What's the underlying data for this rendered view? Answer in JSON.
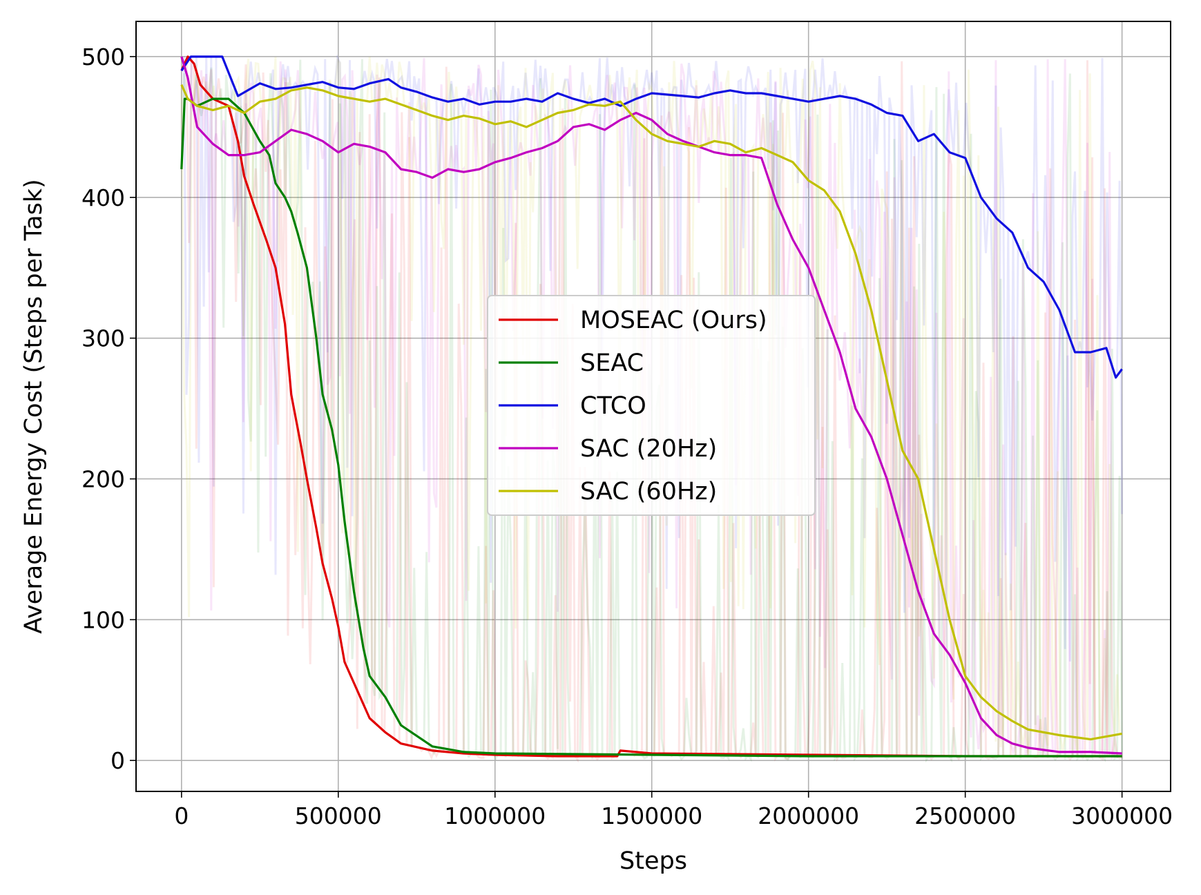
{
  "chart_data": {
    "type": "line",
    "title": "",
    "xlabel": "Steps",
    "ylabel": "Average Energy Cost (Steps per Task)",
    "xlim": [
      -145000,
      3155000
    ],
    "ylim": [
      -22,
      525
    ],
    "x_ticks": [
      0,
      500000,
      1000000,
      1500000,
      2000000,
      2500000,
      3000000
    ],
    "x_tick_labels": [
      "0",
      "500000",
      "1000000",
      "1500000",
      "2000000",
      "2500000",
      "3000000"
    ],
    "y_ticks": [
      0,
      100,
      200,
      300,
      400,
      500
    ],
    "y_tick_labels": [
      "0",
      "100",
      "200",
      "300",
      "400",
      "500"
    ],
    "grid": true,
    "legend_position": "center",
    "series": [
      {
        "name": "MOSEAC (Ours)",
        "color": "#e00000",
        "x": [
          0,
          20000,
          40000,
          60000,
          100000,
          150000,
          180000,
          200000,
          230000,
          270000,
          300000,
          330000,
          350000,
          380000,
          400000,
          430000,
          450000,
          480000,
          500000,
          520000,
          550000,
          580000,
          600000,
          650000,
          700000,
          800000,
          900000,
          1000000,
          1200000,
          1390000,
          1400000,
          1500000,
          2000000,
          2500000,
          3000000
        ],
        "y": [
          490,
          500,
          495,
          480,
          470,
          465,
          440,
          415,
          395,
          370,
          350,
          310,
          260,
          225,
          200,
          165,
          140,
          115,
          95,
          70,
          55,
          40,
          30,
          20,
          12,
          7,
          5,
          4,
          3,
          3,
          7,
          5,
          4,
          3,
          3
        ]
      },
      {
        "name": "SEAC",
        "color": "#008000",
        "x": [
          0,
          10000,
          20000,
          50000,
          100000,
          150000,
          200000,
          250000,
          280000,
          300000,
          330000,
          350000,
          370000,
          400000,
          430000,
          450000,
          480000,
          500000,
          520000,
          550000,
          580000,
          600000,
          650000,
          700000,
          800000,
          900000,
          1000000,
          1500000,
          2000000,
          2500000,
          3000000
        ],
        "y": [
          420,
          470,
          470,
          465,
          470,
          470,
          460,
          440,
          430,
          410,
          400,
          390,
          375,
          350,
          300,
          260,
          235,
          210,
          170,
          120,
          80,
          60,
          45,
          25,
          10,
          6,
          5,
          4,
          3,
          3,
          3
        ]
      },
      {
        "name": "CTCO",
        "color": "#1010e0",
        "x": [
          0,
          30000,
          130000,
          180000,
          250000,
          300000,
          350000,
          400000,
          450000,
          500000,
          550000,
          600000,
          660000,
          700000,
          750000,
          800000,
          850000,
          900000,
          950000,
          1000000,
          1050000,
          1100000,
          1150000,
          1200000,
          1250000,
          1300000,
          1350000,
          1400000,
          1450000,
          1500000,
          1550000,
          1600000,
          1650000,
          1700000,
          1750000,
          1800000,
          1850000,
          1900000,
          1950000,
          2000000,
          2050000,
          2100000,
          2150000,
          2200000,
          2250000,
          2300000,
          2350000,
          2400000,
          2450000,
          2500000,
          2550000,
          2600000,
          2650000,
          2700000,
          2750000,
          2800000,
          2850000,
          2900000,
          2950000,
          2980000,
          3000000
        ],
        "y": [
          490,
          500,
          500,
          472,
          481,
          477,
          478,
          480,
          482,
          478,
          477,
          481,
          484,
          478,
          475,
          471,
          468,
          470,
          466,
          468,
          468,
          470,
          468,
          474,
          470,
          467,
          470,
          465,
          470,
          474,
          473,
          472,
          471,
          474,
          476,
          474,
          474,
          472,
          470,
          468,
          470,
          472,
          470,
          466,
          460,
          458,
          440,
          445,
          432,
          428,
          400,
          385,
          375,
          350,
          340,
          320,
          290,
          290,
          293,
          272,
          278
        ]
      },
      {
        "name": "SAC (20Hz)",
        "color": "#c000c0",
        "x": [
          0,
          20000,
          50000,
          100000,
          150000,
          200000,
          250000,
          300000,
          350000,
          400000,
          450000,
          500000,
          550000,
          600000,
          650000,
          700000,
          750000,
          800000,
          850000,
          900000,
          950000,
          1000000,
          1050000,
          1100000,
          1150000,
          1200000,
          1250000,
          1300000,
          1350000,
          1400000,
          1450000,
          1500000,
          1550000,
          1600000,
          1650000,
          1700000,
          1750000,
          1800000,
          1850000,
          1900000,
          1950000,
          2000000,
          2050000,
          2100000,
          2150000,
          2200000,
          2250000,
          2300000,
          2350000,
          2400000,
          2450000,
          2500000,
          2550000,
          2600000,
          2650000,
          2700000,
          2800000,
          2900000,
          3000000
        ],
        "y": [
          500,
          485,
          450,
          438,
          430,
          430,
          432,
          440,
          448,
          445,
          440,
          432,
          438,
          436,
          432,
          420,
          418,
          414,
          420,
          418,
          420,
          425,
          428,
          432,
          435,
          440,
          450,
          452,
          448,
          455,
          460,
          455,
          445,
          440,
          436,
          432,
          430,
          430,
          428,
          395,
          370,
          350,
          320,
          290,
          250,
          230,
          200,
          160,
          120,
          90,
          75,
          55,
          30,
          18,
          12,
          9,
          6,
          6,
          5
        ]
      },
      {
        "name": "SAC (60Hz)",
        "color": "#c0c000",
        "x": [
          0,
          20000,
          50000,
          100000,
          150000,
          200000,
          250000,
          300000,
          350000,
          400000,
          450000,
          500000,
          550000,
          600000,
          650000,
          700000,
          750000,
          800000,
          850000,
          900000,
          950000,
          1000000,
          1050000,
          1100000,
          1150000,
          1200000,
          1250000,
          1300000,
          1350000,
          1400000,
          1450000,
          1500000,
          1550000,
          1600000,
          1650000,
          1700000,
          1750000,
          1800000,
          1850000,
          1900000,
          1950000,
          2000000,
          2050000,
          2100000,
          2150000,
          2200000,
          2250000,
          2300000,
          2350000,
          2400000,
          2450000,
          2500000,
          2550000,
          2600000,
          2650000,
          2700000,
          2800000,
          2900000,
          3000000
        ],
        "y": [
          480,
          470,
          465,
          462,
          465,
          460,
          468,
          470,
          476,
          478,
          476,
          472,
          470,
          468,
          470,
          466,
          462,
          458,
          455,
          458,
          456,
          452,
          454,
          450,
          455,
          460,
          462,
          466,
          465,
          468,
          455,
          445,
          440,
          438,
          436,
          440,
          438,
          432,
          435,
          430,
          425,
          412,
          405,
          390,
          360,
          320,
          270,
          220,
          200,
          150,
          100,
          60,
          45,
          35,
          28,
          22,
          18,
          15,
          19
        ]
      }
    ]
  }
}
